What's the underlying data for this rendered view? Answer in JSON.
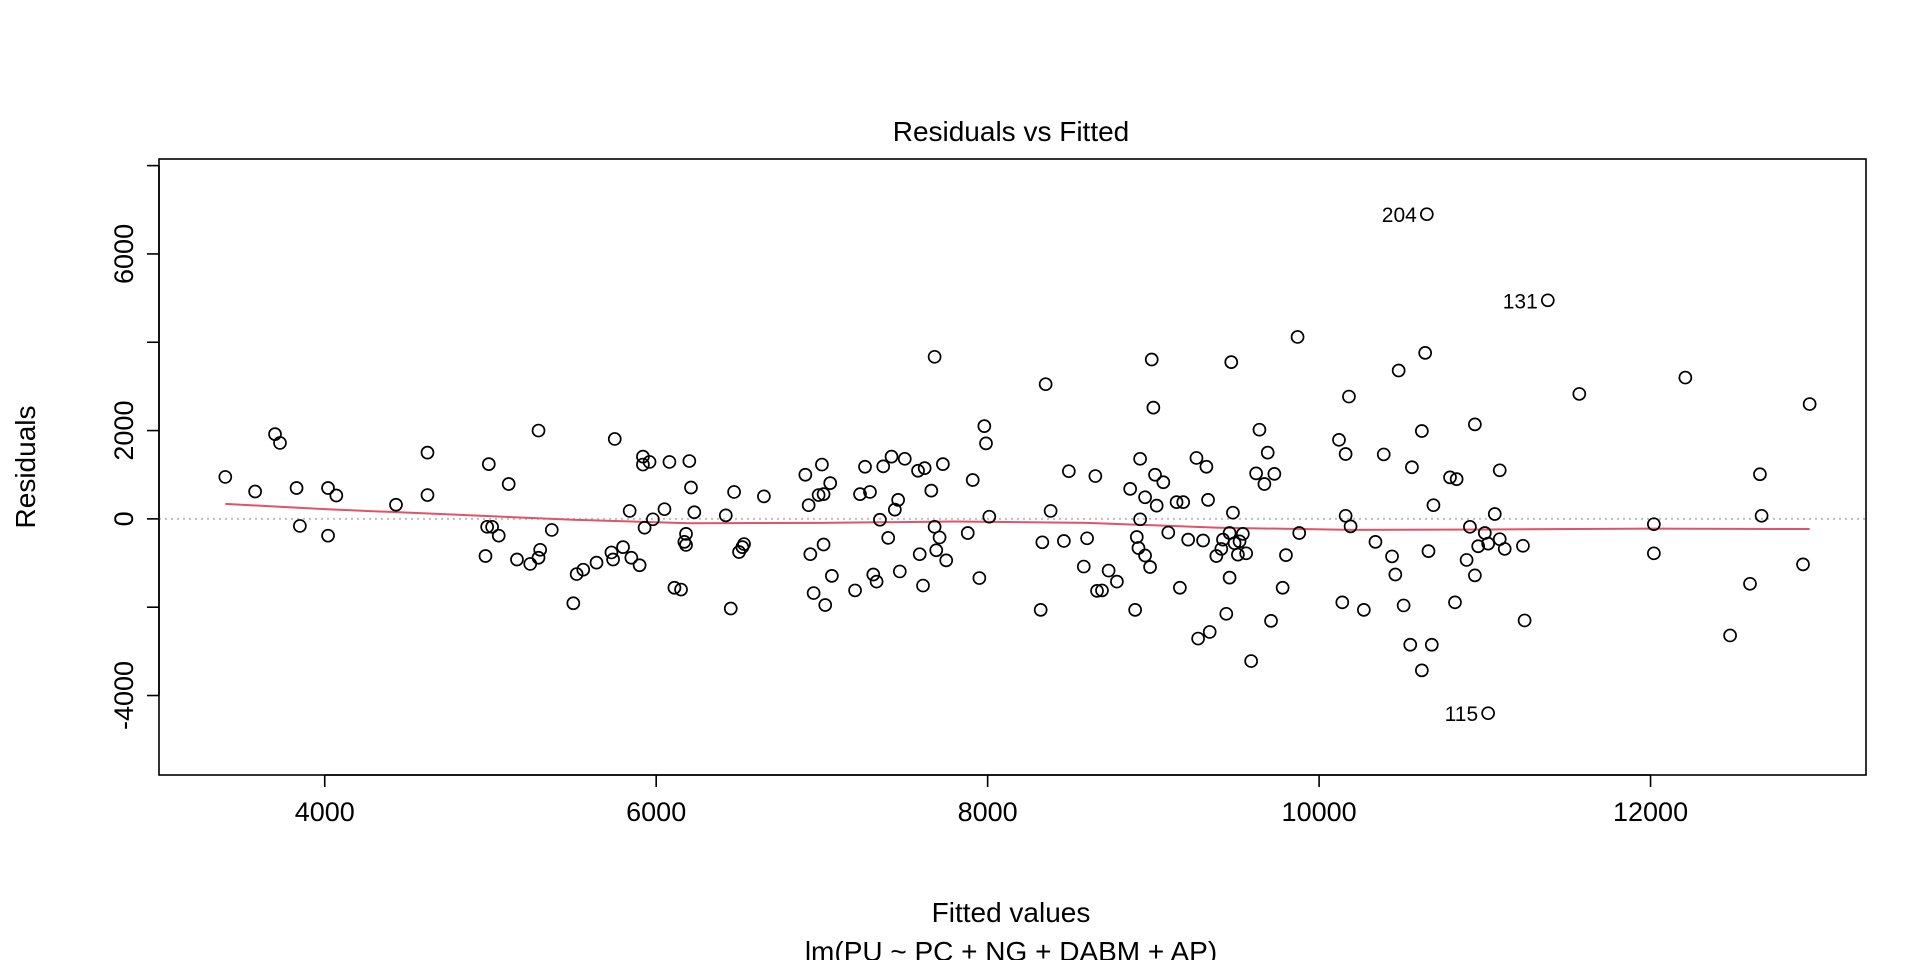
{
  "chart_data": {
    "type": "scatter",
    "title": "Residuals vs Fitted",
    "xlabel": "Fitted values",
    "subtitle": "lm(PU ~ PC + NG + DABM + AP)",
    "ylabel": "Residuals",
    "xlim": [
      3000,
      13300
    ],
    "ylim": [
      -5800,
      8150
    ],
    "xticks": [
      4000,
      6000,
      8000,
      10000,
      12000
    ],
    "xtick_labels": [
      "4000",
      "6000",
      "8000",
      "10000",
      "12000"
    ],
    "yticks": [
      -4000,
      -2000,
      0,
      2000,
      4000,
      6000,
      8000
    ],
    "ytick_labels": [
      "-4000",
      "",
      "0",
      "2000",
      "",
      "6000",
      ""
    ],
    "grid": false,
    "zero_line": {
      "y": 0,
      "style": "dotted",
      "color": "#bebebe"
    },
    "point_color": "#000000",
    "smooth_color": "#df536b",
    "labeled_points": [
      {
        "label": "204",
        "x": 10650,
        "y": 6900
      },
      {
        "label": "131",
        "x": 11380,
        "y": 4950
      },
      {
        "label": "115",
        "x": 11020,
        "y": -4400
      }
    ],
    "points": [
      [
        3400,
        950
      ],
      [
        3580,
        620
      ],
      [
        3700,
        1920
      ],
      [
        3730,
        1720
      ],
      [
        3830,
        700
      ],
      [
        3850,
        -160
      ],
      [
        4020,
        700
      ],
      [
        4020,
        -380
      ],
      [
        4070,
        530
      ],
      [
        4430,
        320
      ],
      [
        4620,
        1500
      ],
      [
        4620,
        540
      ],
      [
        4980,
        -180
      ],
      [
        4990,
        1240
      ],
      [
        4970,
        -840
      ],
      [
        5010,
        -180
      ],
      [
        5050,
        -380
      ],
      [
        5110,
        790
      ],
      [
        5160,
        -920
      ],
      [
        5240,
        -1020
      ],
      [
        5290,
        -880
      ],
      [
        5300,
        -700
      ],
      [
        5290,
        2000
      ],
      [
        5370,
        -250
      ],
      [
        5520,
        -1250
      ],
      [
        5500,
        -1910
      ],
      [
        5560,
        -1150
      ],
      [
        5640,
        -990
      ],
      [
        5730,
        -760
      ],
      [
        5740,
        -920
      ],
      [
        5750,
        1810
      ],
      [
        5800,
        -640
      ],
      [
        5840,
        180
      ],
      [
        5850,
        -880
      ],
      [
        5900,
        -1050
      ],
      [
        5920,
        1410
      ],
      [
        5920,
        1230
      ],
      [
        5960,
        1290
      ],
      [
        5980,
        -10
      ],
      [
        5930,
        -200
      ],
      [
        6050,
        220
      ],
      [
        6080,
        1290
      ],
      [
        6110,
        -1560
      ],
      [
        6150,
        -1600
      ],
      [
        6170,
        -520
      ],
      [
        6180,
        -590
      ],
      [
        6200,
        1310
      ],
      [
        6210,
        710
      ],
      [
        6230,
        150
      ],
      [
        6180,
        -340
      ],
      [
        6420,
        80
      ],
      [
        6450,
        -2030
      ],
      [
        6470,
        610
      ],
      [
        6520,
        -640
      ],
      [
        6500,
        -750
      ],
      [
        6530,
        -570
      ],
      [
        6650,
        510
      ],
      [
        6900,
        1000
      ],
      [
        6920,
        310
      ],
      [
        6930,
        -800
      ],
      [
        6950,
        -1680
      ],
      [
        6980,
        540
      ],
      [
        7000,
        1230
      ],
      [
        7010,
        560
      ],
      [
        7020,
        -1950
      ],
      [
        7050,
        810
      ],
      [
        7060,
        -1290
      ],
      [
        7010,
        -580
      ],
      [
        7200,
        -1620
      ],
      [
        7230,
        560
      ],
      [
        7260,
        1180
      ],
      [
        7290,
        610
      ],
      [
        7310,
        -1260
      ],
      [
        7330,
        -1420
      ],
      [
        7370,
        1190
      ],
      [
        7350,
        -20
      ],
      [
        7400,
        -430
      ],
      [
        7420,
        1410
      ],
      [
        7440,
        210
      ],
      [
        7460,
        430
      ],
      [
        7500,
        1360
      ],
      [
        7470,
        -1190
      ],
      [
        7590,
        -800
      ],
      [
        7580,
        1090
      ],
      [
        7610,
        -1510
      ],
      [
        7620,
        1150
      ],
      [
        7660,
        640
      ],
      [
        7680,
        -180
      ],
      [
        7690,
        -710
      ],
      [
        7680,
        3670
      ],
      [
        7730,
        1240
      ],
      [
        7710,
        -420
      ],
      [
        7750,
        -940
      ],
      [
        7880,
        -320
      ],
      [
        7910,
        880
      ],
      [
        7950,
        -1340
      ],
      [
        7980,
        2100
      ],
      [
        7990,
        1710
      ],
      [
        8010,
        50
      ],
      [
        8320,
        -2060
      ],
      [
        8330,
        -530
      ],
      [
        8350,
        3050
      ],
      [
        8380,
        180
      ],
      [
        8460,
        -500
      ],
      [
        8490,
        1080
      ],
      [
        8580,
        -1080
      ],
      [
        8600,
        -440
      ],
      [
        8650,
        970
      ],
      [
        8660,
        -1630
      ],
      [
        8690,
        -1620
      ],
      [
        8730,
        -1170
      ],
      [
        8780,
        -1420
      ],
      [
        8860,
        680
      ],
      [
        8890,
        -2060
      ],
      [
        8900,
        -410
      ],
      [
        8910,
        -660
      ],
      [
        8920,
        -10
      ],
      [
        8920,
        1360
      ],
      [
        8950,
        -830
      ],
      [
        8950,
        490
      ],
      [
        8990,
        3610
      ],
      [
        8980,
        -1090
      ],
      [
        9010,
        1000
      ],
      [
        9000,
        2520
      ],
      [
        9020,
        300
      ],
      [
        9060,
        830
      ],
      [
        9090,
        -310
      ],
      [
        9140,
        380
      ],
      [
        9160,
        -1560
      ],
      [
        9180,
        380
      ],
      [
        9210,
        -470
      ],
      [
        9260,
        1380
      ],
      [
        9270,
        -2710
      ],
      [
        9300,
        -490
      ],
      [
        9320,
        1180
      ],
      [
        9340,
        -2560
      ],
      [
        9330,
        430
      ],
      [
        9380,
        -840
      ],
      [
        9410,
        -680
      ],
      [
        9420,
        -470
      ],
      [
        9440,
        -2150
      ],
      [
        9460,
        -1330
      ],
      [
        9460,
        -320
      ],
      [
        9470,
        3550
      ],
      [
        9480,
        140
      ],
      [
        9490,
        -550
      ],
      [
        9510,
        -810
      ],
      [
        9520,
        -510
      ],
      [
        9540,
        -340
      ],
      [
        9560,
        -780
      ],
      [
        9590,
        -3220
      ],
      [
        9620,
        1030
      ],
      [
        9640,
        2020
      ],
      [
        9670,
        790
      ],
      [
        9690,
        1500
      ],
      [
        9710,
        -2310
      ],
      [
        9730,
        1020
      ],
      [
        9780,
        -1560
      ],
      [
        9800,
        -820
      ],
      [
        9870,
        4120
      ],
      [
        9880,
        -320
      ],
      [
        10120,
        1790
      ],
      [
        10140,
        -1890
      ],
      [
        10160,
        1470
      ],
      [
        10160,
        70
      ],
      [
        10180,
        2770
      ],
      [
        10190,
        -170
      ],
      [
        10270,
        -2060
      ],
      [
        10340,
        -520
      ],
      [
        10390,
        1460
      ],
      [
        10440,
        -850
      ],
      [
        10460,
        -1260
      ],
      [
        10480,
        3360
      ],
      [
        10510,
        -1960
      ],
      [
        10550,
        -2850
      ],
      [
        10560,
        1170
      ],
      [
        10620,
        1990
      ],
      [
        10620,
        -3430
      ],
      [
        10640,
        3760
      ],
      [
        10660,
        -730
      ],
      [
        10680,
        -2850
      ],
      [
        10690,
        310
      ],
      [
        10790,
        940
      ],
      [
        10820,
        -1890
      ],
      [
        10830,
        900
      ],
      [
        10890,
        -930
      ],
      [
        10910,
        -180
      ],
      [
        10940,
        -1280
      ],
      [
        10940,
        2140
      ],
      [
        10960,
        -620
      ],
      [
        11000,
        -320
      ],
      [
        11020,
        -560
      ],
      [
        11060,
        110
      ],
      [
        11090,
        1100
      ],
      [
        11090,
        -460
      ],
      [
        11120,
        -680
      ],
      [
        11230,
        -610
      ],
      [
        11240,
        -2300
      ],
      [
        11570,
        2830
      ],
      [
        12020,
        -780
      ],
      [
        12020,
        -120
      ],
      [
        12210,
        3200
      ],
      [
        12480,
        -2640
      ],
      [
        12600,
        -1470
      ],
      [
        12660,
        1010
      ],
      [
        12670,
        70
      ],
      [
        12920,
        -1030
      ],
      [
        12960,
        2600
      ]
    ],
    "smooth": [
      [
        3400,
        340
      ],
      [
        4000,
        220
      ],
      [
        4700,
        110
      ],
      [
        5500,
        -20
      ],
      [
        6200,
        -100
      ],
      [
        7000,
        -90
      ],
      [
        7800,
        -60
      ],
      [
        8600,
        -90
      ],
      [
        9400,
        -200
      ],
      [
        10200,
        -250
      ],
      [
        11000,
        -240
      ],
      [
        12000,
        -220
      ],
      [
        12960,
        -230
      ]
    ]
  }
}
